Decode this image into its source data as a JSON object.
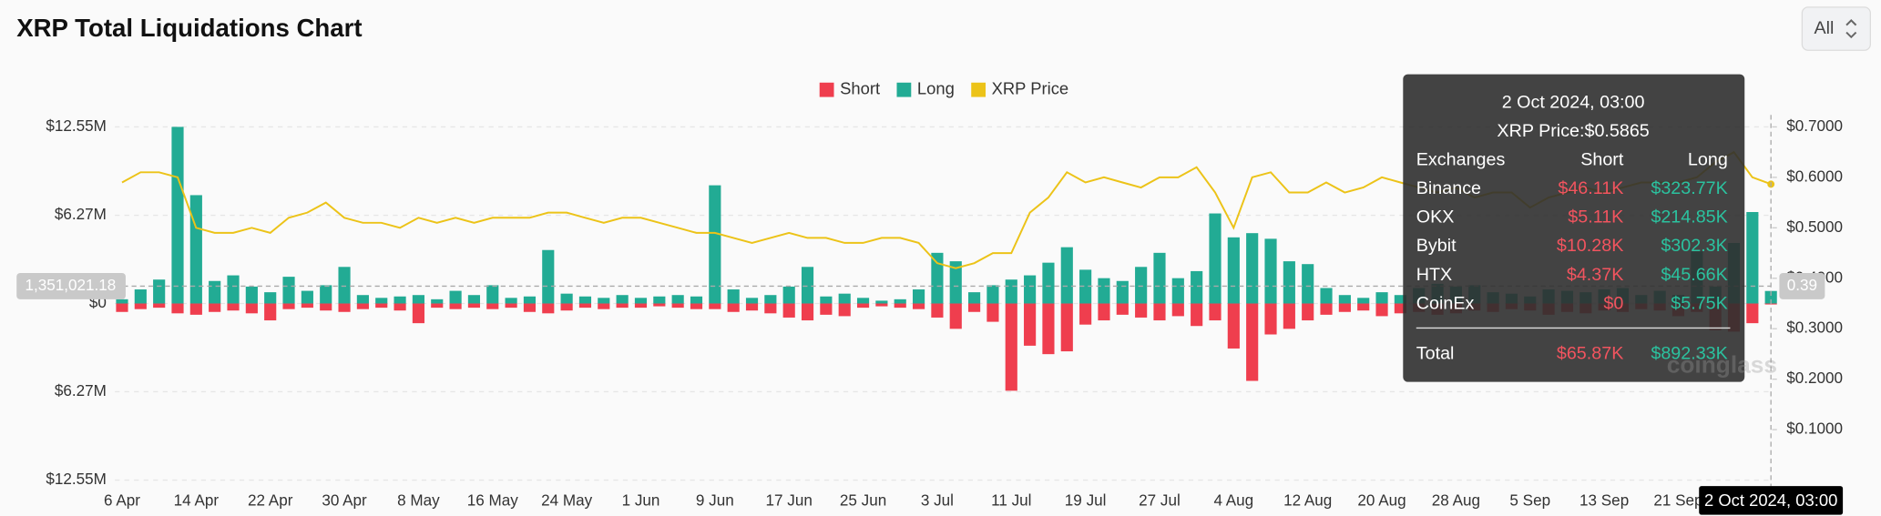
{
  "chart_data": {
    "type": "bar",
    "title": "XRP Total Liquidations Chart",
    "categories": [
      "6 Apr",
      null,
      null,
      null,
      "14 Apr",
      null,
      null,
      null,
      "22 Apr",
      null,
      null,
      null,
      "30 Apr",
      null,
      null,
      null,
      "8 May",
      null,
      null,
      null,
      "16 May",
      null,
      null,
      null,
      "24 May",
      null,
      null,
      null,
      "1 Jun",
      null,
      null,
      null,
      "9 Jun",
      null,
      null,
      null,
      "17 Jun",
      null,
      null,
      null,
      "25 Jun",
      null,
      null,
      null,
      "3 Jul",
      null,
      null,
      null,
      "11 Jul",
      null,
      null,
      null,
      "19 Jul",
      null,
      null,
      null,
      "27 Jul",
      null,
      null,
      null,
      "4 Aug",
      null,
      null,
      null,
      "12 Aug",
      null,
      null,
      null,
      "20 Aug",
      null,
      null,
      null,
      "28 Aug",
      null,
      null,
      null,
      "5 Sep",
      null,
      null,
      null,
      "13 Sep",
      null,
      null,
      null,
      "21 Sep",
      null,
      null,
      null,
      null,
      null
    ],
    "series": [
      {
        "name": "Short",
        "type": "bar",
        "color": "#ef3e4e",
        "values": [
          -0.6,
          -0.4,
          -0.3,
          -0.7,
          -0.8,
          -0.6,
          -0.5,
          -0.7,
          -1.2,
          -0.4,
          -0.3,
          -0.5,
          -0.6,
          -0.4,
          -0.3,
          -0.5,
          -1.4,
          -0.3,
          -0.4,
          -0.3,
          -0.4,
          -0.3,
          -0.6,
          -0.7,
          -0.5,
          -0.3,
          -0.4,
          -0.3,
          -0.3,
          -0.2,
          -0.3,
          -0.4,
          -0.4,
          -0.6,
          -0.5,
          -0.7,
          -1.0,
          -1.2,
          -0.8,
          -0.9,
          -0.3,
          -0.2,
          -0.3,
          -0.4,
          -1.0,
          -1.8,
          -0.6,
          -1.3,
          -6.2,
          -3.0,
          -3.6,
          -3.4,
          -1.5,
          -1.2,
          -0.8,
          -1.0,
          -1.2,
          -0.9,
          -1.6,
          -1.2,
          -3.2,
          -5.5,
          -2.2,
          -1.8,
          -1.2,
          -0.8,
          -0.6,
          -0.5,
          -0.9,
          -0.7,
          -0.6,
          -0.8,
          -0.7,
          -0.5,
          -0.6,
          -0.4,
          -0.5,
          -0.8,
          -0.6,
          -0.7,
          -0.5,
          -0.6,
          -0.4,
          -0.5,
          -0.9,
          -0.6,
          -1.9,
          -2.0,
          -1.4,
          -0.07
        ]
      },
      {
        "name": "Long",
        "type": "bar",
        "color": "#22ab94",
        "values": [
          0.3,
          1.0,
          1.7,
          12.55,
          7.7,
          1.6,
          2.0,
          1.2,
          0.8,
          1.9,
          0.9,
          1.3,
          2.6,
          0.6,
          0.4,
          0.5,
          0.6,
          0.3,
          0.9,
          0.6,
          1.3,
          0.4,
          0.5,
          3.8,
          0.7,
          0.5,
          0.4,
          0.6,
          0.4,
          0.5,
          0.6,
          0.5,
          8.4,
          1.0,
          0.4,
          0.6,
          1.2,
          2.6,
          0.5,
          0.7,
          0.4,
          0.2,
          0.3,
          1.0,
          3.6,
          3.0,
          0.8,
          1.3,
          1.7,
          2.0,
          2.9,
          4.0,
          2.4,
          1.8,
          1.6,
          2.6,
          3.6,
          1.8,
          2.3,
          6.4,
          4.7,
          5.0,
          4.6,
          3.0,
          2.8,
          1.1,
          0.6,
          0.4,
          0.8,
          0.6,
          1.1,
          1.4,
          1.2,
          1.3,
          0.8,
          0.7,
          0.5,
          1.0,
          0.9,
          0.8,
          1.0,
          1.1,
          0.6,
          0.9,
          0.6,
          3.7,
          1.2,
          4.3,
          6.5,
          0.89
        ]
      },
      {
        "name": "XRP Price",
        "type": "line",
        "axis": "y2",
        "color": "#ecc318",
        "values": [
          0.59,
          0.61,
          0.61,
          0.6,
          0.5,
          0.49,
          0.49,
          0.5,
          0.49,
          0.52,
          0.53,
          0.55,
          0.52,
          0.51,
          0.51,
          0.5,
          0.52,
          0.51,
          0.52,
          0.51,
          0.52,
          0.52,
          0.52,
          0.53,
          0.53,
          0.52,
          0.51,
          0.52,
          0.52,
          0.51,
          0.5,
          0.49,
          0.49,
          0.48,
          0.47,
          0.48,
          0.49,
          0.48,
          0.48,
          0.47,
          0.47,
          0.48,
          0.48,
          0.47,
          0.43,
          0.42,
          0.43,
          0.45,
          0.45,
          0.53,
          0.56,
          0.61,
          0.59,
          0.6,
          0.59,
          0.58,
          0.6,
          0.6,
          0.62,
          0.57,
          0.5,
          0.6,
          0.61,
          0.57,
          0.57,
          0.59,
          0.57,
          0.58,
          0.6,
          0.59,
          0.58,
          0.57,
          0.58,
          0.56,
          0.57,
          0.57,
          0.54,
          0.56,
          0.57,
          0.58,
          0.57,
          0.58,
          0.59,
          0.59,
          0.59,
          0.6,
          0.63,
          0.65,
          0.6,
          0.5865
        ]
      }
    ],
    "ylim": [
      -12.55,
      12.55
    ],
    "yticks": [
      {
        "value": 12.55,
        "label": "$12.55M"
      },
      {
        "value": 6.27,
        "label": "$6.27M"
      },
      {
        "value": 0,
        "label": "$0"
      },
      {
        "value": -6.27,
        "label": "$6.27M"
      },
      {
        "value": -12.55,
        "label": "$12.55M"
      }
    ],
    "y2lim": [
      0,
      0.7
    ],
    "y2ticks": [
      {
        "value": 0.7,
        "label": "$0.7000"
      },
      {
        "value": 0.6,
        "label": "$0.6000"
      },
      {
        "value": 0.5,
        "label": "$0.5000"
      },
      {
        "value": 0.4,
        "label": "$0.4000"
      },
      {
        "value": 0.3,
        "label": "$0.3000"
      },
      {
        "value": 0.2,
        "label": "$0.2000"
      },
      {
        "value": 0.1,
        "label": "$0.1000"
      }
    ],
    "grid": true,
    "legend": "top"
  },
  "controls": {
    "range": "All"
  },
  "crosshair": {
    "y_label": "1,351,021.18",
    "y2_label": "0.39"
  },
  "watermark": "coinglass",
  "tooltip": {
    "title": "2 Oct 2024, 03:00",
    "price": "XRP Price:$0.5865",
    "header": [
      "Exchanges",
      "Short",
      "Long"
    ],
    "rows": [
      [
        "Binance",
        "$46.11K",
        "$323.77K"
      ],
      [
        "OKX",
        "$5.11K",
        "$214.85K"
      ],
      [
        "Bybit",
        "$10.28K",
        "$302.3K"
      ],
      [
        "HTX",
        "$4.37K",
        "$45.66K"
      ],
      [
        "CoinEx",
        "$0",
        "$5.75K"
      ]
    ],
    "total": [
      "Total",
      "$65.87K",
      "$892.33K"
    ]
  }
}
